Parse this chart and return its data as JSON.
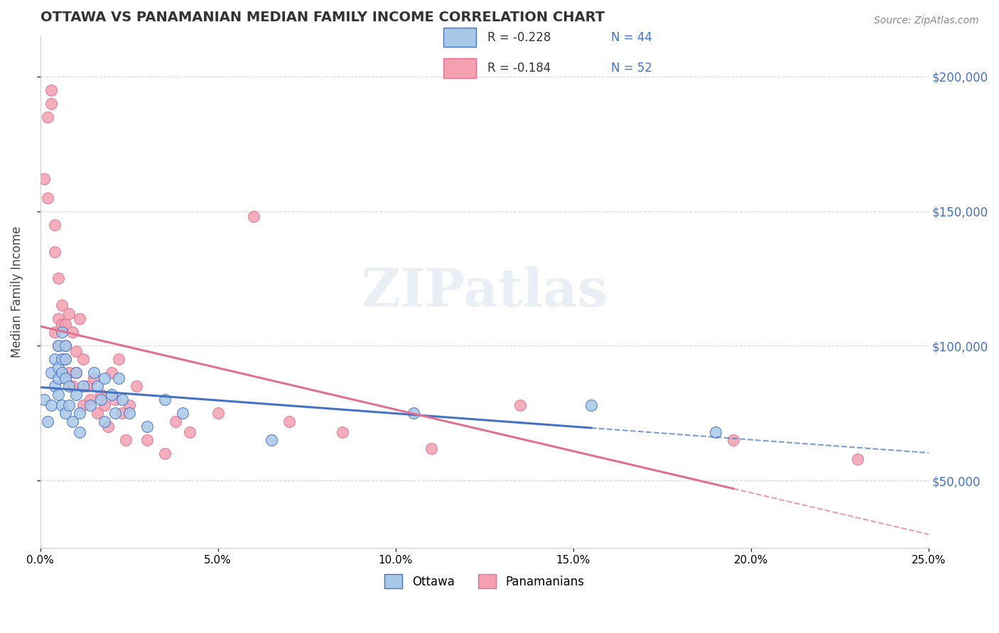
{
  "title": "OTTAWA VS PANAMANIAN MEDIAN FAMILY INCOME CORRELATION CHART",
  "source": "Source: ZipAtlas.com",
  "ylabel": "Median Family Income",
  "ytick_labels": [
    "$50,000",
    "$100,000",
    "$150,000",
    "$200,000"
  ],
  "ytick_values": [
    50000,
    100000,
    150000,
    200000
  ],
  "xmin": 0.0,
  "xmax": 0.25,
  "ymin": 25000,
  "ymax": 215000,
  "ottawa_R": -0.228,
  "ottawa_N": 44,
  "panama_R": -0.184,
  "panama_N": 52,
  "ottawa_color": "#a8c8e8",
  "panama_color": "#f4a0b0",
  "ottawa_line_color": "#4472c4",
  "panama_line_color": "#e07090",
  "watermark": "ZIPatlas",
  "ottawa_x": [
    0.001,
    0.002,
    0.003,
    0.003,
    0.004,
    0.004,
    0.005,
    0.005,
    0.005,
    0.005,
    0.006,
    0.006,
    0.006,
    0.006,
    0.007,
    0.007,
    0.007,
    0.007,
    0.008,
    0.008,
    0.009,
    0.01,
    0.01,
    0.011,
    0.011,
    0.012,
    0.014,
    0.015,
    0.016,
    0.017,
    0.018,
    0.018,
    0.02,
    0.021,
    0.022,
    0.023,
    0.025,
    0.03,
    0.035,
    0.04,
    0.065,
    0.105,
    0.155,
    0.19
  ],
  "ottawa_y": [
    80000,
    72000,
    90000,
    78000,
    95000,
    85000,
    100000,
    92000,
    88000,
    82000,
    105000,
    95000,
    90000,
    78000,
    100000,
    95000,
    88000,
    75000,
    85000,
    78000,
    72000,
    90000,
    82000,
    75000,
    68000,
    85000,
    78000,
    90000,
    85000,
    80000,
    88000,
    72000,
    82000,
    75000,
    88000,
    80000,
    75000,
    70000,
    80000,
    75000,
    65000,
    75000,
    78000,
    68000
  ],
  "panama_x": [
    0.001,
    0.002,
    0.002,
    0.003,
    0.003,
    0.004,
    0.004,
    0.004,
    0.005,
    0.005,
    0.005,
    0.006,
    0.006,
    0.006,
    0.007,
    0.007,
    0.007,
    0.008,
    0.008,
    0.009,
    0.009,
    0.01,
    0.01,
    0.011,
    0.012,
    0.012,
    0.013,
    0.014,
    0.015,
    0.016,
    0.017,
    0.018,
    0.019,
    0.02,
    0.021,
    0.022,
    0.023,
    0.024,
    0.025,
    0.027,
    0.03,
    0.035,
    0.038,
    0.042,
    0.05,
    0.06,
    0.07,
    0.085,
    0.11,
    0.135,
    0.195,
    0.23
  ],
  "panama_y": [
    162000,
    155000,
    185000,
    195000,
    190000,
    145000,
    135000,
    105000,
    110000,
    125000,
    100000,
    115000,
    108000,
    95000,
    108000,
    100000,
    95000,
    112000,
    90000,
    105000,
    85000,
    98000,
    90000,
    110000,
    78000,
    95000,
    85000,
    80000,
    88000,
    75000,
    82000,
    78000,
    70000,
    90000,
    80000,
    95000,
    75000,
    65000,
    78000,
    85000,
    65000,
    60000,
    72000,
    68000,
    75000,
    148000,
    72000,
    68000,
    62000,
    78000,
    65000,
    58000
  ]
}
